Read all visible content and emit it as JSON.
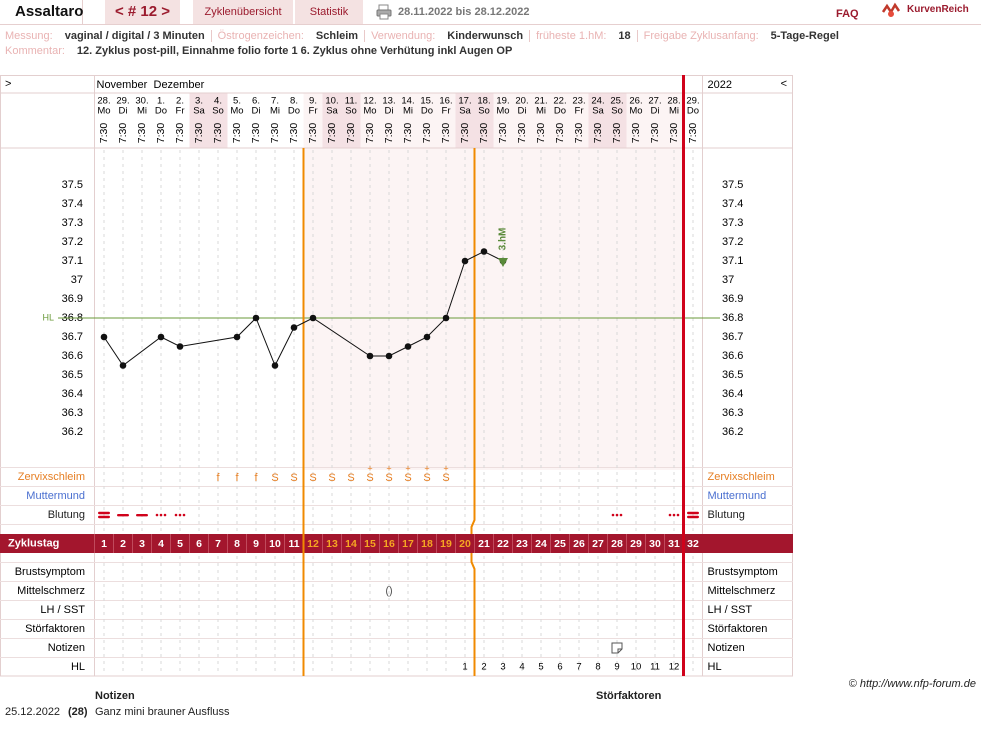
{
  "header": {
    "user": "Assaltaro",
    "cycle_nav": "< # 12 >",
    "tab_overview": "Zyklenübersicht",
    "tab_stats": "Statistik",
    "date_range": "28.11.2022 bis 28.12.2022",
    "faq": "FAQ",
    "logo": "KurvenReich"
  },
  "info": {
    "items": [
      {
        "label": "Messung:",
        "value": "vaginal / digital / 3 Minuten"
      },
      {
        "label": "Östrogenzeichen:",
        "value": "Schleim"
      },
      {
        "label": "Verwendung:",
        "value": "Kinderwunsch"
      },
      {
        "label": "früheste 1.hM:",
        "value": "18"
      },
      {
        "label": "Freigabe Zyklusanfang:",
        "value": "5-Tage-Regel"
      }
    ],
    "comment_label": "Kommentar:",
    "comment": "12. Zyklus post-pill, Einnahme folio forte 1 6.  Zyklus ohne Verhütung inkl Augen OP"
  },
  "chart_data": {
    "type": "line",
    "expand_left": ">",
    "expand_right": "<",
    "months": [
      "November",
      "Dezember"
    ],
    "year": "2022",
    "time": "7:30",
    "dates": [
      {
        "day": "28.",
        "weekday": "Mo"
      },
      {
        "day": "29.",
        "weekday": "Di"
      },
      {
        "day": "30.",
        "weekday": "Mi"
      },
      {
        "day": "1.",
        "weekday": "Do"
      },
      {
        "day": "2.",
        "weekday": "Fr"
      },
      {
        "day": "3.",
        "weekday": "Sa"
      },
      {
        "day": "4.",
        "weekday": "So"
      },
      {
        "day": "5.",
        "weekday": "Mo"
      },
      {
        "day": "6.",
        "weekday": "Di"
      },
      {
        "day": "7.",
        "weekday": "Mi"
      },
      {
        "day": "8.",
        "weekday": "Do"
      },
      {
        "day": "9.",
        "weekday": "Fr"
      },
      {
        "day": "10.",
        "weekday": "Sa"
      },
      {
        "day": "11.",
        "weekday": "So"
      },
      {
        "day": "12.",
        "weekday": "Mo"
      },
      {
        "day": "13.",
        "weekday": "Di"
      },
      {
        "day": "14.",
        "weekday": "Mi"
      },
      {
        "day": "15.",
        "weekday": "Do"
      },
      {
        "day": "16.",
        "weekday": "Fr"
      },
      {
        "day": "17.",
        "weekday": "Sa"
      },
      {
        "day": "18.",
        "weekday": "So"
      },
      {
        "day": "19.",
        "weekday": "Mo"
      },
      {
        "day": "20.",
        "weekday": "Di"
      },
      {
        "day": "21.",
        "weekday": "Mi"
      },
      {
        "day": "22.",
        "weekday": "Do"
      },
      {
        "day": "23.",
        "weekday": "Fr"
      },
      {
        "day": "24.",
        "weekday": "Sa"
      },
      {
        "day": "25.",
        "weekday": "So"
      },
      {
        "day": "26.",
        "weekday": "Mo"
      },
      {
        "day": "27.",
        "weekday": "Di"
      },
      {
        "day": "28.",
        "weekday": "Mi"
      },
      {
        "day": "29.",
        "weekday": "Do"
      }
    ],
    "xlim": [
      0.5,
      32.5
    ],
    "ylim": [
      36.0,
      37.7
    ],
    "yticks": [
      37.5,
      37.4,
      37.3,
      37.2,
      37.1,
      37,
      36.9,
      36.8,
      36.7,
      36.6,
      36.5,
      36.4,
      36.3,
      36.2
    ],
    "x": [
      1,
      2,
      4,
      5,
      8,
      9,
      10,
      11,
      12,
      15,
      16,
      17,
      18,
      19,
      20,
      21,
      22
    ],
    "values": [
      36.7,
      36.55,
      36.7,
      36.65,
      36.7,
      36.8,
      36.55,
      36.75,
      36.8,
      36.6,
      36.6,
      36.65,
      36.7,
      36.8,
      37.1,
      37.15,
      37.1
    ],
    "color": "#111111",
    "cover_line": 36.8,
    "cover_line_label": "HL",
    "cover_line_color": "#6a9a3a",
    "third_high": {
      "x": 22,
      "label": "3.hM",
      "color": "#5a8a3a"
    },
    "rows_top": [
      "Zervixschleim",
      "Muttermund",
      "Blutung"
    ],
    "cycle_day_label": "Zyklustag",
    "rows_bottom": [
      "Brustsymptom",
      "Mittelschmerz",
      "LH / SST",
      "Störfaktoren",
      "Notizen",
      "HL"
    ],
    "mucus": [
      {
        "x": 7,
        "symbol": "f"
      },
      {
        "x": 8,
        "symbol": "f"
      },
      {
        "x": 9,
        "symbol": "f"
      },
      {
        "x": 10,
        "symbol": "S"
      },
      {
        "x": 11,
        "symbol": "S"
      },
      {
        "x": 12,
        "symbol": "S"
      },
      {
        "x": 13,
        "symbol": "S"
      },
      {
        "x": 14,
        "symbol": "S"
      },
      {
        "x": 15,
        "symbol": "S",
        "mark": "+"
      },
      {
        "x": 16,
        "symbol": "S",
        "mark": "+"
      },
      {
        "x": 17,
        "symbol": "S",
        "mark": "+"
      },
      {
        "x": 18,
        "symbol": "S",
        "mark": "+"
      },
      {
        "x": 19,
        "symbol": "S",
        "mark": "+"
      }
    ],
    "cycle_days": [
      1,
      2,
      3,
      4,
      5,
      6,
      7,
      8,
      9,
      10,
      11,
      12,
      13,
      14,
      15,
      16,
      17,
      18,
      19,
      20,
      21,
      22,
      23,
      24,
      25,
      26,
      27,
      28,
      29,
      30,
      31,
      32
    ],
    "hl_numbers": [
      null,
      null,
      null,
      null,
      null,
      null,
      null,
      null,
      null,
      null,
      null,
      null,
      null,
      null,
      null,
      null,
      null,
      null,
      null,
      1,
      2,
      3,
      4,
      5,
      6,
      7,
      8,
      9,
      10,
      11,
      12,
      null
    ]
  },
  "footer": {
    "copyright": "© http://www.nfp-forum.de",
    "notes_header": "Notizen",
    "disturb_header": "Störfaktoren",
    "notes": [
      {
        "date": "25.12.2022",
        "day": "(28)",
        "text": "Ganz mini brauner Ausfluss"
      }
    ]
  }
}
